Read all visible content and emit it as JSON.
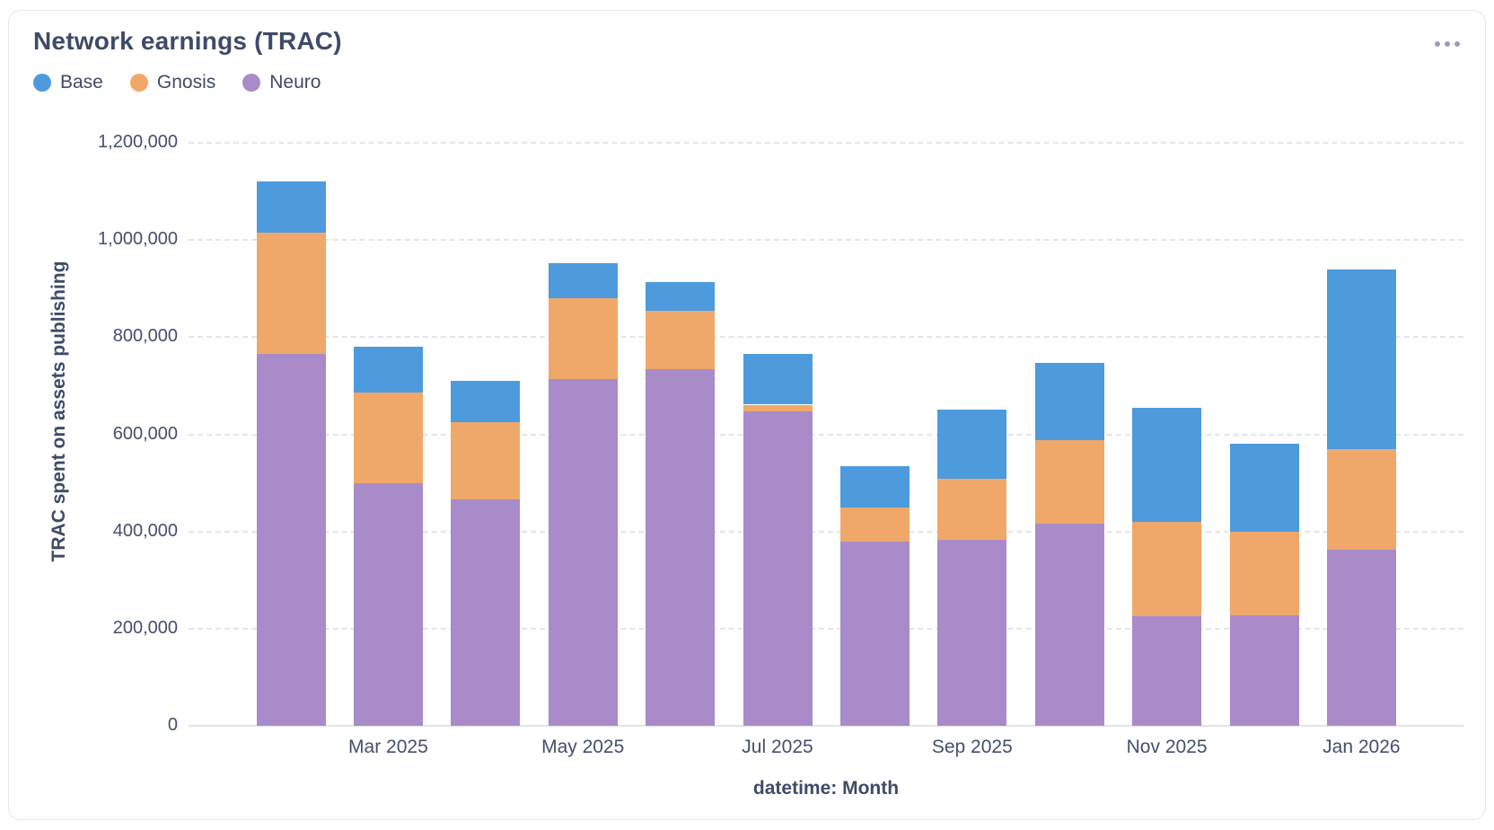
{
  "card": {
    "menu_icon": "ellipsis-horizontal-icon"
  },
  "chart_data": {
    "type": "bar",
    "stacked": true,
    "title": "Network earnings (TRAC)",
    "xlabel": "datetime: Month",
    "ylabel": "TRAC spent on assets publishing",
    "categories": [
      "Feb 2025",
      "Mar 2025",
      "Apr 2025",
      "May 2025",
      "Jun 2025",
      "Jul 2025",
      "Aug 2025",
      "Sep 2025",
      "Oct 2025",
      "Nov 2025",
      "Dec 2025",
      "Jan 2026"
    ],
    "x_tick_labels": [
      "Mar 2025",
      "May 2025",
      "Jul 2025",
      "Sep 2025",
      "Nov 2025",
      "Jan 2026"
    ],
    "y_ticks": [
      0,
      200000,
      400000,
      600000,
      800000,
      1000000,
      1200000
    ],
    "y_tick_labels": [
      "0",
      "200,000",
      "400,000",
      "600,000",
      "800,000",
      "1,000,000",
      "1,200,000"
    ],
    "ylim": [
      0,
      1200000
    ],
    "grid": "horizontal-dashed",
    "legend_position": "top-left",
    "stack_order_bottom_to_top": [
      "Neuro",
      "Gnosis",
      "Base"
    ],
    "series": [
      {
        "name": "Base",
        "color": "#4d9bdd",
        "values": [
          105000,
          95000,
          85000,
          73000,
          58000,
          105000,
          85000,
          142000,
          158000,
          235000,
          182000,
          371000
        ]
      },
      {
        "name": "Gnosis",
        "color": "#f0a86a",
        "values": [
          250000,
          186000,
          158000,
          167000,
          121000,
          13000,
          70000,
          127000,
          173000,
          193000,
          171000,
          207000
        ]
      },
      {
        "name": "Neuro",
        "color": "#a88bc8",
        "values": [
          765000,
          500000,
          467000,
          713000,
          734000,
          648000,
          379000,
          382000,
          416000,
          226000,
          228000,
          362000
        ]
      }
    ]
  }
}
